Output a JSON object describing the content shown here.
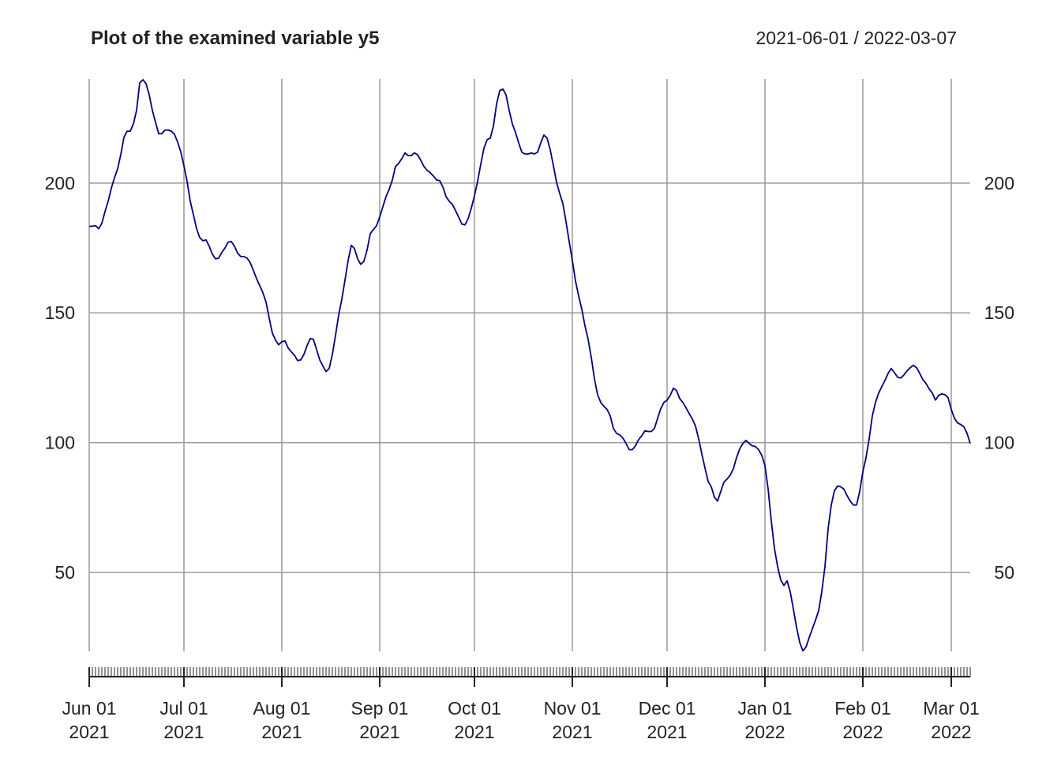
{
  "chart_data": {
    "type": "line",
    "title": "Plot of the examined variable y5",
    "subtitle": "2021-06-01 / 2022-03-07",
    "color": "#000080",
    "grid": true,
    "xlim": [
      "2021-06-01",
      "2022-03-07"
    ],
    "ylim": [
      19.6,
      240.1
    ],
    "yticks": [
      50,
      100,
      150,
      200
    ],
    "xticks": [
      {
        "value": "2021-06-01",
        "label": [
          "Jun 01",
          "2021"
        ]
      },
      {
        "value": "2021-07-01",
        "label": [
          "Jul 01",
          "2021"
        ]
      },
      {
        "value": "2021-08-01",
        "label": [
          "Aug 01",
          "2021"
        ]
      },
      {
        "value": "2021-09-01",
        "label": [
          "Sep 01",
          "2021"
        ]
      },
      {
        "value": "2021-10-01",
        "label": [
          "Oct 01",
          "2021"
        ]
      },
      {
        "value": "2021-11-01",
        "label": [
          "Nov 01",
          "2021"
        ]
      },
      {
        "value": "2021-12-01",
        "label": [
          "Dec 01",
          "2021"
        ]
      },
      {
        "value": "2022-01-01",
        "label": [
          "Jan 01",
          "2022"
        ]
      },
      {
        "value": "2022-02-01",
        "label": [
          "Feb 01",
          "2022"
        ]
      },
      {
        "value": "2022-03-01",
        "label": [
          "Mar 01",
          "2022"
        ]
      }
    ],
    "x": [
      "2021-06-01",
      "2021-06-02",
      "2021-06-03",
      "2021-06-04",
      "2021-06-05",
      "2021-06-06",
      "2021-06-07",
      "2021-06-08",
      "2021-06-09",
      "2021-06-10",
      "2021-06-11",
      "2021-06-12",
      "2021-06-13",
      "2021-06-14",
      "2021-06-15",
      "2021-06-16",
      "2021-06-17",
      "2021-06-18",
      "2021-06-19",
      "2021-06-20",
      "2021-06-21",
      "2021-06-22",
      "2021-06-23",
      "2021-06-24",
      "2021-06-25",
      "2021-06-26",
      "2021-06-27",
      "2021-06-28",
      "2021-06-29",
      "2021-06-30",
      "2021-07-01",
      "2021-07-02",
      "2021-07-03",
      "2021-07-04",
      "2021-07-05",
      "2021-07-06",
      "2021-07-07",
      "2021-07-08",
      "2021-07-09",
      "2021-07-10",
      "2021-07-11",
      "2021-07-12",
      "2021-07-13",
      "2021-07-14",
      "2021-07-15",
      "2021-07-16",
      "2021-07-17",
      "2021-07-18",
      "2021-07-19",
      "2021-07-20",
      "2021-07-21",
      "2021-07-22",
      "2021-07-23",
      "2021-07-24",
      "2021-07-25",
      "2021-07-26",
      "2021-07-27",
      "2021-07-28",
      "2021-07-29",
      "2021-07-30",
      "2021-07-31",
      "2021-08-01",
      "2021-08-02",
      "2021-08-03",
      "2021-08-04",
      "2021-08-05",
      "2021-08-06",
      "2021-08-07",
      "2021-08-08",
      "2021-08-09",
      "2021-08-10",
      "2021-08-11",
      "2021-08-12",
      "2021-08-13",
      "2021-08-14",
      "2021-08-15",
      "2021-08-16",
      "2021-08-17",
      "2021-08-18",
      "2021-08-19",
      "2021-08-20",
      "2021-08-21",
      "2021-08-22",
      "2021-08-23",
      "2021-08-24",
      "2021-08-25",
      "2021-08-26",
      "2021-08-27",
      "2021-08-28",
      "2021-08-29",
      "2021-08-30",
      "2021-08-31",
      "2021-09-01",
      "2021-09-02",
      "2021-09-03",
      "2021-09-04",
      "2021-09-05",
      "2021-09-06",
      "2021-09-07",
      "2021-09-08",
      "2021-09-09",
      "2021-09-10",
      "2021-09-11",
      "2021-09-12",
      "2021-09-13",
      "2021-09-14",
      "2021-09-15",
      "2021-09-16",
      "2021-09-17",
      "2021-09-18",
      "2021-09-19",
      "2021-09-20",
      "2021-09-21",
      "2021-09-22",
      "2021-09-23",
      "2021-09-24",
      "2021-09-25",
      "2021-09-26",
      "2021-09-27",
      "2021-09-28",
      "2021-09-29",
      "2021-09-30",
      "2021-10-01",
      "2021-10-02",
      "2021-10-03",
      "2021-10-04",
      "2021-10-05",
      "2021-10-06",
      "2021-10-07",
      "2021-10-08",
      "2021-10-09",
      "2021-10-10",
      "2021-10-11",
      "2021-10-12",
      "2021-10-13",
      "2021-10-14",
      "2021-10-15",
      "2021-10-16",
      "2021-10-17",
      "2021-10-18",
      "2021-10-19",
      "2021-10-20",
      "2021-10-21",
      "2021-10-22",
      "2021-10-23",
      "2021-10-24",
      "2021-10-25",
      "2021-10-26",
      "2021-10-27",
      "2021-10-28",
      "2021-10-29",
      "2021-10-30",
      "2021-10-31",
      "2021-11-01",
      "2021-11-02",
      "2021-11-03",
      "2021-11-04",
      "2021-11-05",
      "2021-11-06",
      "2021-11-07",
      "2021-11-08",
      "2021-11-09",
      "2021-11-10",
      "2021-11-11",
      "2021-11-12",
      "2021-11-13",
      "2021-11-14",
      "2021-11-15",
      "2021-11-16",
      "2021-11-17",
      "2021-11-18",
      "2021-11-19",
      "2021-11-20",
      "2021-11-21",
      "2021-11-22",
      "2021-11-23",
      "2021-11-24",
      "2021-11-25",
      "2021-11-26",
      "2021-11-27",
      "2021-11-28",
      "2021-11-29",
      "2021-11-30",
      "2021-12-01",
      "2021-12-02",
      "2021-12-03",
      "2021-12-04",
      "2021-12-05",
      "2021-12-06",
      "2021-12-07",
      "2021-12-08",
      "2021-12-09",
      "2021-12-10",
      "2021-12-11",
      "2021-12-12",
      "2021-12-13",
      "2021-12-14",
      "2021-12-15",
      "2021-12-16",
      "2021-12-17",
      "2021-12-18",
      "2021-12-19",
      "2021-12-20",
      "2021-12-21",
      "2021-12-22",
      "2021-12-23",
      "2021-12-24",
      "2021-12-25",
      "2021-12-26",
      "2021-12-27",
      "2021-12-28",
      "2021-12-29",
      "2021-12-30",
      "2021-12-31",
      "2022-01-01",
      "2022-01-02",
      "2022-01-03",
      "2022-01-04",
      "2022-01-05",
      "2022-01-06",
      "2022-01-07",
      "2022-01-08",
      "2022-01-09",
      "2022-01-10",
      "2022-01-11",
      "2022-01-12",
      "2022-01-13",
      "2022-01-14",
      "2022-01-15",
      "2022-01-16",
      "2022-01-17",
      "2022-01-18",
      "2022-01-19",
      "2022-01-20",
      "2022-01-21",
      "2022-01-22",
      "2022-01-23",
      "2022-01-24",
      "2022-01-25",
      "2022-01-26",
      "2022-01-27",
      "2022-01-28",
      "2022-01-29",
      "2022-01-30",
      "2022-01-31",
      "2022-02-01",
      "2022-02-02",
      "2022-02-03",
      "2022-02-04",
      "2022-02-05",
      "2022-02-06",
      "2022-02-07",
      "2022-02-08",
      "2022-02-09",
      "2022-02-10",
      "2022-02-11",
      "2022-02-12",
      "2022-02-13",
      "2022-02-14",
      "2022-02-15",
      "2022-02-16",
      "2022-02-17",
      "2022-02-18",
      "2022-02-19",
      "2022-02-20",
      "2022-02-21",
      "2022-02-22",
      "2022-02-23",
      "2022-02-24",
      "2022-02-25",
      "2022-02-26",
      "2022-02-27",
      "2022-02-28",
      "2022-03-01",
      "2022-03-02",
      "2022-03-03",
      "2022-03-04",
      "2022-03-05",
      "2022-03-06",
      "2022-03-07"
    ],
    "values": [
      183.3,
      183.4,
      183.6,
      182.4,
      184.5,
      189,
      193,
      198,
      202,
      205.5,
      211,
      217.6,
      220,
      220,
      222.8,
      228,
      238.6,
      239.8,
      238.3,
      234,
      228,
      223.4,
      219,
      219,
      220.4,
      220.4,
      220,
      218.8,
      215.8,
      212,
      206.7,
      200.6,
      193,
      187.8,
      182.4,
      179,
      177.8,
      178.1,
      175.7,
      172.6,
      170.8,
      171.1,
      173.3,
      175,
      177.2,
      177.5,
      175.7,
      173,
      171.7,
      171.7,
      171.1,
      169.3,
      166.3,
      163.2,
      160.5,
      157.8,
      154.1,
      148,
      142.2,
      139.5,
      137.7,
      138.9,
      139.2,
      136.5,
      135,
      133.7,
      131.6,
      131.9,
      134,
      137.4,
      140.1,
      139.8,
      135.9,
      131.9,
      129.5,
      127.4,
      128.6,
      134,
      141.3,
      149.2,
      155.3,
      162.6,
      170.2,
      176,
      174.8,
      170.8,
      168.7,
      169.9,
      174.2,
      180.5,
      182.1,
      183.6,
      186.9,
      190.9,
      194.8,
      197.6,
      201.2,
      206.4,
      207.6,
      209.4,
      211.6,
      210.6,
      210.6,
      211.6,
      210.9,
      208.8,
      206.4,
      204.9,
      204,
      202.7,
      201.2,
      200.9,
      198.5,
      194.8,
      193,
      191.8,
      189.4,
      186.9,
      184.2,
      183.9,
      186.3,
      190.3,
      195.1,
      200.6,
      207.3,
      213.4,
      216.7,
      217.3,
      221.9,
      230.4,
      235.6,
      236.2,
      234,
      228,
      222.8,
      219.5,
      215.5,
      211.9,
      211.2,
      211.2,
      211.6,
      211.2,
      211.9,
      215.5,
      218.5,
      217.3,
      212.8,
      206.7,
      200.3,
      196,
      192.1,
      185.1,
      177.5,
      170.2,
      162.3,
      156.5,
      151.4,
      145,
      139.8,
      132.8,
      124.6,
      118.5,
      115.5,
      114,
      112.8,
      110.3,
      105.5,
      103.6,
      103,
      101.8,
      99.7,
      97.3,
      97.3,
      98.8,
      101.2,
      102.7,
      104.6,
      104.3,
      104.3,
      105.5,
      109.4,
      113.1,
      115.5,
      116.4,
      118.2,
      121,
      120.1,
      117,
      115.5,
      113.4,
      111.2,
      109.1,
      106.4,
      101.5,
      95.7,
      90.3,
      85.1,
      83,
      79,
      77.5,
      81.2,
      84.8,
      86,
      87.5,
      90,
      94.2,
      97.6,
      99.7,
      100.9,
      99.7,
      98.8,
      98.5,
      97.3,
      95.1,
      91.2,
      82.1,
      69.9,
      59.3,
      52.3,
      47.1,
      45,
      46.8,
      42.6,
      35.9,
      28.9,
      23.1,
      19.8,
      21.3,
      24.9,
      28.3,
      31.6,
      35.3,
      42.6,
      52.3,
      66.9,
      76,
      81.5,
      83.3,
      83,
      82.1,
      79.6,
      77.5,
      76,
      76,
      81.2,
      88.8,
      94.2,
      101.5,
      110.3,
      115.5,
      119.1,
      121.6,
      124,
      126.7,
      128.6,
      127,
      125.2,
      124.9,
      126.1,
      127.7,
      128.9,
      129.8,
      128.9,
      126.7,
      124.3,
      122.8,
      120.7,
      119.1,
      116.4,
      118.2,
      118.8,
      118.5,
      117.3,
      112.8,
      109.4,
      107.6,
      107,
      106.1,
      103.6,
      99.7
    ]
  }
}
